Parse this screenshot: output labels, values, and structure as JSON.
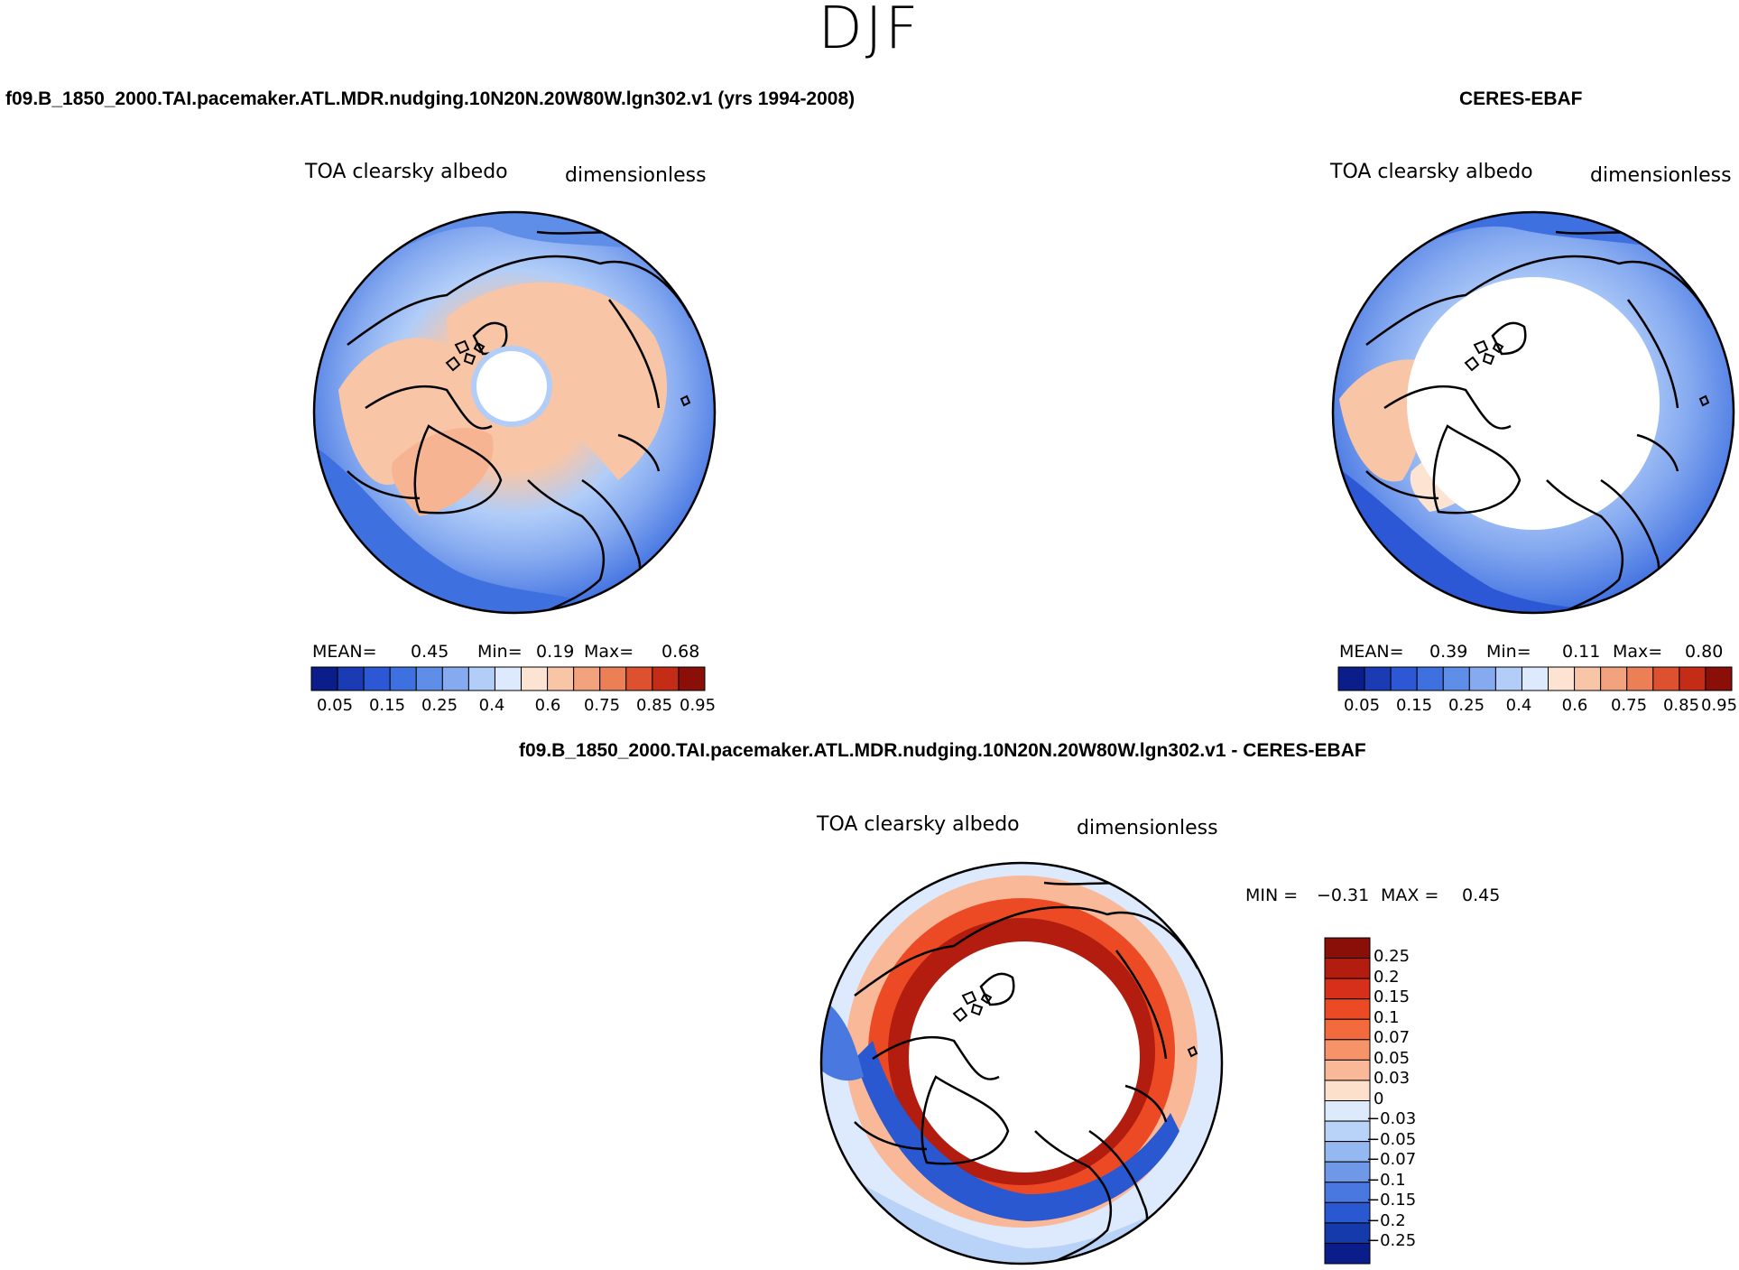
{
  "page": {
    "suptitle": "DJF"
  },
  "chart_data": [
    {
      "type": "heatmap",
      "projection": "north-polar-stereographic",
      "panel": "model",
      "title": "f09.B_1850_2000.TAI.pacemaker.ATL.MDR.nudging.10N20N.20W80W.lgn302.v1 (yrs 1994-2008)",
      "variable": "TOA clearsky albedo",
      "units": "dimensionless",
      "stats": {
        "mean_label": "MEAN=",
        "mean": "0.45",
        "min_label": "Min=",
        "min": "0.19",
        "max_label": "Max=",
        "max": "0.68"
      },
      "colorbar_ticks": [
        "0.05",
        "0.15",
        "0.25",
        "0.4",
        "0.6",
        "0.75",
        "0.85",
        "0.95"
      ]
    },
    {
      "type": "heatmap",
      "projection": "north-polar-stereographic",
      "panel": "observations",
      "title": "CERES-EBAF",
      "variable": "TOA clearsky albedo",
      "units": "dimensionless",
      "stats": {
        "mean_label": "MEAN=",
        "mean": "0.39",
        "min_label": "Min=",
        "min": "0.11",
        "max_label": "Max=",
        "max": "0.80"
      },
      "colorbar_ticks": [
        "0.05",
        "0.15",
        "0.25",
        "0.4",
        "0.6",
        "0.75",
        "0.85",
        "0.95"
      ]
    },
    {
      "type": "heatmap",
      "projection": "north-polar-stereographic",
      "panel": "difference",
      "title": "f09.B_1850_2000.TAI.pacemaker.ATL.MDR.nudging.10N20N.20W80W.lgn302.v1 - CERES-EBAF",
      "variable": "TOA clearsky albedo",
      "units": "dimensionless",
      "stats": {
        "min_label": "MIN =",
        "min": "−0.31",
        "max_label": "MAX =",
        "max": "0.45"
      },
      "colorbar_ticks": [
        "0.25",
        "0.2",
        "0.15",
        "0.1",
        "0.07",
        "0.05",
        "0.03",
        "0",
        "−0.03",
        "−0.05",
        "−0.07",
        "−0.1",
        "−0.15",
        "−0.2",
        "−0.25"
      ]
    }
  ],
  "palettes": {
    "albedo": [
      "#0a1d8a",
      "#1a3bb4",
      "#2c58d6",
      "#3f70e0",
      "#5f8ee8",
      "#86aaf0",
      "#b1cdf8",
      "#dde9fc",
      "#fde4d2",
      "#f8c6a7",
      "#f2a37e",
      "#ec7f56",
      "#dd5130",
      "#c42c18",
      "#8a0f08"
    ],
    "diff": [
      "#8a0f08",
      "#b21d0f",
      "#d7301a",
      "#eb4a24",
      "#f36a3d",
      "#f69369",
      "#f9b897",
      "#fde0cc",
      "#ddeafb",
      "#b9d2f7",
      "#94b8f0",
      "#6f99e8",
      "#4878e0",
      "#2a58d0",
      "#143aac",
      "#0a1d8a"
    ]
  }
}
